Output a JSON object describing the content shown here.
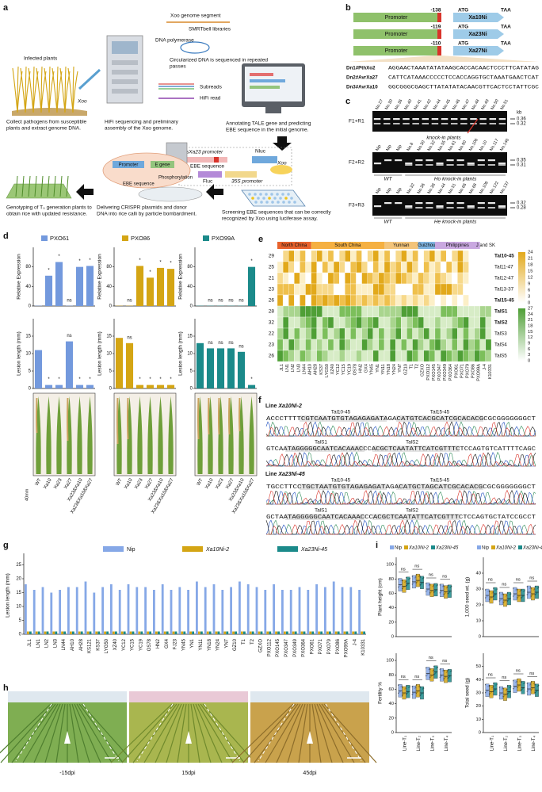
{
  "a": {
    "label": "a",
    "infected": "Infected plants",
    "xoo1": "Xoo",
    "collect": [
      "Collect pathogens from susceptible",
      "plants and extract genome DNA."
    ],
    "segment": "Xoo genome segment",
    "smrt": "SMRTbell libraries",
    "dnapol": "DNA polymerase",
    "circ": [
      "Circularized DNA is sequenced in repeated",
      "passes"
    ],
    "subreads": "Subreads",
    "hifiread": "HiFi read",
    "hifi": [
      "HiFi sequencing and preliminary",
      "assembly of the Xoo genome."
    ],
    "annot": [
      "Annotating TALE gene and predicting",
      "EBE sequence in the initial genome."
    ],
    "osxa23": "OsXa23 promoter",
    "nluc": "Nluc",
    "ebe1": "EBE sequence",
    "fluc": "Fluc",
    "s35": "35S promoter",
    "xoo2": "Xoo",
    "screen": [
      "Screening EBE sequences that can be correctly",
      "recognized by Xoo using luciferase assay."
    ],
    "promoter": "Promoter",
    "egene": "E gene",
    "phos": "Phosphorylation",
    "ebe2": "EBE sequence",
    "deliver": [
      "Delivering CRISPR plasmids and donor",
      "DNA into rice calli by particle bombardment."
    ],
    "geno": [
      "Genotyping of T₀ generation plants to",
      "obtain rice with updated resistance."
    ]
  },
  "b": {
    "label": "b",
    "promoter": "Promoter",
    "atg": "ATG",
    "taa": "TAA",
    "constructs": [
      {
        "pos": "-138",
        "gene": "Xa10Ni"
      },
      {
        "pos": "-119",
        "gene": "Xa23Ni"
      },
      {
        "pos": "-110",
        "gene": "Xa27Ni"
      }
    ],
    "donors": [
      {
        "name": "Dn1#PthXo2",
        "seq": "AGGAACTAAATATATAAGCACCACAACTCCCTTCATATAG"
      },
      {
        "name": "Dn2#AvrXa27",
        "seq": "CATTCATAAACCCCCTCCACCAGGTGCTAAATGAACTCAT"
      },
      {
        "name": "Dn3#AvrXa10",
        "seq": "GGCGGGCGAGCTTATATATACAACGTTCACTCCTATTCGC"
      }
    ]
  },
  "c": {
    "label": "c",
    "kb": "kb",
    "gels": [
      {
        "primer": "F1+R1",
        "lanes": [
          "No.27",
          "No.30",
          "No.36",
          "No.40",
          "No.41",
          "No.42",
          "No.44",
          "No.45",
          "No.46",
          "No.47",
          "No.48",
          "No.49",
          "No.50",
          "No.51"
        ],
        "sizes": [
          0.36,
          0.32
        ],
        "groups": [
          "knock-in plants"
        ]
      },
      {
        "primer": "F2+R2",
        "lanes": [
          "Nip",
          "Nip",
          "Nip",
          "No.8",
          "No.30",
          "No.32",
          "No.55",
          "No.61",
          "No.90",
          "No.106",
          "No.10",
          "No.117",
          "No.146"
        ],
        "sizes": [
          0.35,
          0.31
        ],
        "groups": [
          "WT",
          "Ho knock-in plants"
        ]
      },
      {
        "primer": "F3+R3",
        "lanes": [
          "Nip",
          "Nip",
          "Nip",
          "No.32",
          "No.36",
          "No.38",
          "No.44",
          "No.51",
          "No.66",
          "No.68",
          "No.108",
          "No.122",
          "No.137"
        ],
        "sizes": [
          0.32,
          0.28
        ],
        "groups": [
          "WT",
          "He knock-in plants"
        ]
      }
    ]
  },
  "d": {
    "label": "d",
    "ylabel_expr": "Relative Expression",
    "ylabel_lesion": "Lesion length (mm)",
    "scale": "40mm",
    "xlabels": [
      "WT",
      "Xa10",
      "Xa23",
      "Xa27",
      "Xa23&Xa10",
      "Xa23&Xa10&Xa27"
    ],
    "expr_lim": [
      0,
      120
    ],
    "expr_ticks": [
      0,
      40,
      80
    ],
    "lesion_lim": [
      0,
      20
    ],
    "lesion_ticks": [
      0,
      5,
      10,
      15
    ],
    "strains": [
      {
        "name": "PXO61",
        "color": "#7399dd",
        "expr": [
          0.5,
          62,
          90,
          0.5,
          80,
          82
        ],
        "sig_expr": [
          null,
          "*",
          "*",
          "ns",
          "*",
          "*"
        ],
        "lesion": [
          11,
          1,
          1,
          13.5,
          1,
          1
        ],
        "sig_lesion": [
          null,
          "*",
          "*",
          "ns",
          "*",
          "*"
        ]
      },
      {
        "name": "PXO86",
        "color": "#d4a514",
        "expr": [
          0.5,
          0.5,
          82,
          58,
          78,
          76
        ],
        "sig_expr": [
          null,
          "ns",
          "*",
          "*",
          "*",
          "*"
        ],
        "lesion": [
          14.5,
          13,
          1,
          1,
          1,
          1
        ],
        "sig_lesion": [
          null,
          "ns",
          "*",
          "*",
          "*",
          "*"
        ]
      },
      {
        "name": "PXO99A",
        "color": "#1b8a8a",
        "expr": [
          0.5,
          0.5,
          0.5,
          0.5,
          0.5,
          80
        ],
        "sig_expr": [
          null,
          "ns",
          "ns",
          "ns",
          "ns",
          "*"
        ],
        "lesion": [
          13,
          11.5,
          11.5,
          11.5,
          10.5,
          1
        ],
        "sig_lesion": [
          null,
          "ns",
          "ns",
          "ns",
          "ns",
          "*"
        ]
      }
    ]
  },
  "e": {
    "label": "e",
    "regions": [
      "North China",
      "South China",
      "Yunnan",
      "Guizhou",
      "Philippines",
      "J and SK"
    ],
    "rows": [
      {
        "n": 29,
        "name": "Tal10-45"
      },
      {
        "n": 25,
        "name": "Tal11-47"
      },
      {
        "n": 21,
        "name": "Tal12-47"
      },
      {
        "n": 23,
        "name": "Tal13-37"
      },
      {
        "n": 26,
        "name": "Tal15-45"
      },
      {
        "n": 28,
        "name": "TalS1"
      },
      {
        "n": 32,
        "name": "TalS2"
      },
      {
        "n": 22,
        "name": "TalS3"
      },
      {
        "n": 23,
        "name": "TalS4"
      },
      {
        "n": 26,
        "name": "TalS5"
      }
    ],
    "columns": [
      "JL1",
      "LN1",
      "LN2",
      "LN3",
      "LN44",
      "AH10",
      "AH28",
      "KS37",
      "LYG50",
      "XZ40",
      "YC12",
      "YC15",
      "YC19",
      "OS78",
      "HN2",
      "GX4",
      "YN45",
      "YN1",
      "YN11",
      "YN18",
      "YN24",
      "YN7",
      "GZ10",
      "T1",
      "T2",
      "GZXO",
      "PXO112",
      "PXO145",
      "PXO347",
      "PXO349",
      "PXO364",
      "PXO61",
      "PXO71",
      "PXO79",
      "PXO86",
      "PXO99A",
      "J-4",
      "K10331"
    ],
    "gold_ticks": [
      24,
      21,
      18,
      15,
      12,
      9,
      6,
      3,
      0
    ],
    "green_ticks": [
      27,
      24,
      21,
      18,
      15,
      12,
      9,
      6,
      3,
      0
    ]
  },
  "f": {
    "label": "f",
    "lines": [
      {
        "title": [
          "Line ",
          "Xa10Ni-2"
        ],
        "tals": [
          "Tal10-45",
          "Tal15-45",
          "TalS1",
          "TalS2"
        ],
        "seq1": "ACCCTTTTCGTCAATGTGTAGAGAGATAGACATGTCACGCATCGCACACGCGCGGGGGGGCT",
        "seq2": "GTCAATAGGGGGCAATCACAAACCCACGCTCAATATTCATCGTTTCTCCAGTGTCATTTTCAGC"
      },
      {
        "title": [
          "Line ",
          "Xa23Ni-45"
        ],
        "tals": [
          "Tal10-45",
          "Tal15-45",
          "TalS1",
          "TalS2"
        ],
        "seq1": "TGCCTTCCTGCTAATGTGTAGAGAGATAGACATGCTAGCATCGCACACGCGCGGGGGGGCT",
        "seq2": "GCTAATAGGGGGCAATCACAAACCCACGCTCAATATTCATCGTTTCTCCAGTGCTATCCGCCT"
      }
    ]
  },
  "g": {
    "label": "g",
    "ylabel": "Lesion length (mm)",
    "ylim": [
      0,
      28
    ],
    "yticks": [
      0,
      5,
      10,
      15,
      20,
      25
    ],
    "categories": [
      "JL1",
      "LN1",
      "LN2",
      "LN3",
      "LN44",
      "AH10",
      "AH28",
      "KS121",
      "KS37",
      "LYG50",
      "XZ40",
      "YC12",
      "YC15",
      "YC19",
      "OS78",
      "HN2",
      "GX4",
      "FJ23",
      "YN45",
      "YN1",
      "YN11",
      "YN18",
      "YN24",
      "YN7",
      "GZ10",
      "T1",
      "T2",
      "GZXO",
      "PXO112",
      "PXO145",
      "PXO347",
      "PXO349",
      "PXO364",
      "PXO61",
      "PXO71",
      "PXO79",
      "PXO86",
      "PXO99A",
      "J-4",
      "K10331"
    ],
    "series": [
      {
        "name": "Nip",
        "color": "#86a8e7",
        "values": [
          18,
          16,
          17,
          15,
          16,
          17,
          17,
          19,
          15,
          17,
          18,
          16,
          18,
          17,
          17,
          16,
          18,
          16,
          17,
          16,
          19,
          17,
          18,
          16,
          17,
          19,
          18,
          17,
          16,
          18,
          16,
          16,
          17,
          16,
          18,
          17,
          19,
          17,
          17,
          16
        ]
      },
      {
        "name": "Xa10Ni-2",
        "color": "#d4a514",
        "values": [
          1,
          1,
          1,
          1,
          1,
          1,
          1,
          1,
          1,
          1,
          1,
          1,
          1,
          1,
          1,
          1,
          1,
          1,
          1,
          1,
          1,
          1,
          1,
          1,
          1,
          1,
          1,
          1,
          1,
          1,
          1,
          1,
          1,
          1,
          1,
          1,
          1,
          1,
          1,
          1
        ]
      },
      {
        "name": "Xa23Ni-45",
        "color": "#1b8a8a",
        "values": [
          1,
          1,
          1,
          1,
          1,
          1,
          1,
          1,
          1,
          1,
          1,
          1,
          1,
          1,
          1,
          1,
          1,
          1,
          1,
          1,
          1,
          1,
          1,
          1,
          1,
          1,
          1,
          1,
          1,
          1,
          1,
          1,
          1,
          1,
          1,
          1,
          1,
          1,
          1,
          1
        ]
      }
    ]
  },
  "h": {
    "label": "h",
    "days": [
      "-15dpi",
      "15dpi",
      "45dpi"
    ]
  },
  "i": {
    "label": "i",
    "ns": "ns",
    "xlabels": [
      "Line-T₁",
      "Line-T₂",
      "Line-T₃",
      "Line-T₄"
    ],
    "charts": [
      {
        "ylabel": "Plant height (cm)",
        "ylim": [
          0,
          110
        ],
        "yticks": [
          0,
          20,
          40,
          60,
          80,
          100
        ],
        "series": [
          {
            "name": "Nip",
            "color": "#86a8e7",
            "values": [
              72,
              76,
              66,
              64
            ]
          },
          {
            "name": "Xa10Ni-2",
            "color": "#d4a514",
            "values": [
              70,
              78,
              64,
              62
            ]
          },
          {
            "name": "Xa23Ni-45",
            "color": "#1b8a8a",
            "values": [
              74,
              75,
              65,
              63
            ]
          }
        ]
      },
      {
        "ylabel": "1,000 seed wt. (g)",
        "ylim": [
          0,
          50
        ],
        "yticks": [
          0,
          10,
          20,
          30,
          40
        ],
        "series": [
          {
            "name": "Nip",
            "color": "#86a8e7",
            "values": [
              26,
              24,
              27,
              28
            ]
          },
          {
            "name": "Xa10Ni-2",
            "color": "#d4a514",
            "values": [
              25,
              23,
              26,
              27
            ]
          },
          {
            "name": "Xa23Ni-45",
            "color": "#1b8a8a",
            "values": [
              27,
              24,
              26,
              28
            ]
          }
        ]
      },
      {
        "ylabel": "Fertility %",
        "ylim": [
          0,
          110
        ],
        "yticks": [
          0,
          20,
          40,
          60,
          80,
          100
        ],
        "series": [
          {
            "name": "Nip",
            "color": "#86a8e7",
            "values": [
              58,
              56,
              82,
              80
            ]
          },
          {
            "name": "Xa10Ni-2",
            "color": "#d4a514",
            "values": [
              55,
              58,
              80,
              78
            ]
          },
          {
            "name": "Xa23Ni-45",
            "color": "#1b8a8a",
            "values": [
              57,
              55,
              84,
              79
            ]
          }
        ]
      },
      {
        "ylabel": "Total seed (g)",
        "ylim": [
          0,
          60
        ],
        "yticks": [
          0,
          10,
          20,
          30,
          40,
          50
        ],
        "series": [
          {
            "name": "Nip",
            "color": "#86a8e7",
            "values": [
              32,
              30,
              35,
              33
            ]
          },
          {
            "name": "Xa10Ni-2",
            "color": "#d4a514",
            "values": [
              31,
              29,
              36,
              34
            ]
          },
          {
            "name": "Xa23Ni-45",
            "color": "#1b8a8a",
            "values": [
              33,
              31,
              34,
              32
            ]
          }
        ]
      }
    ]
  }
}
